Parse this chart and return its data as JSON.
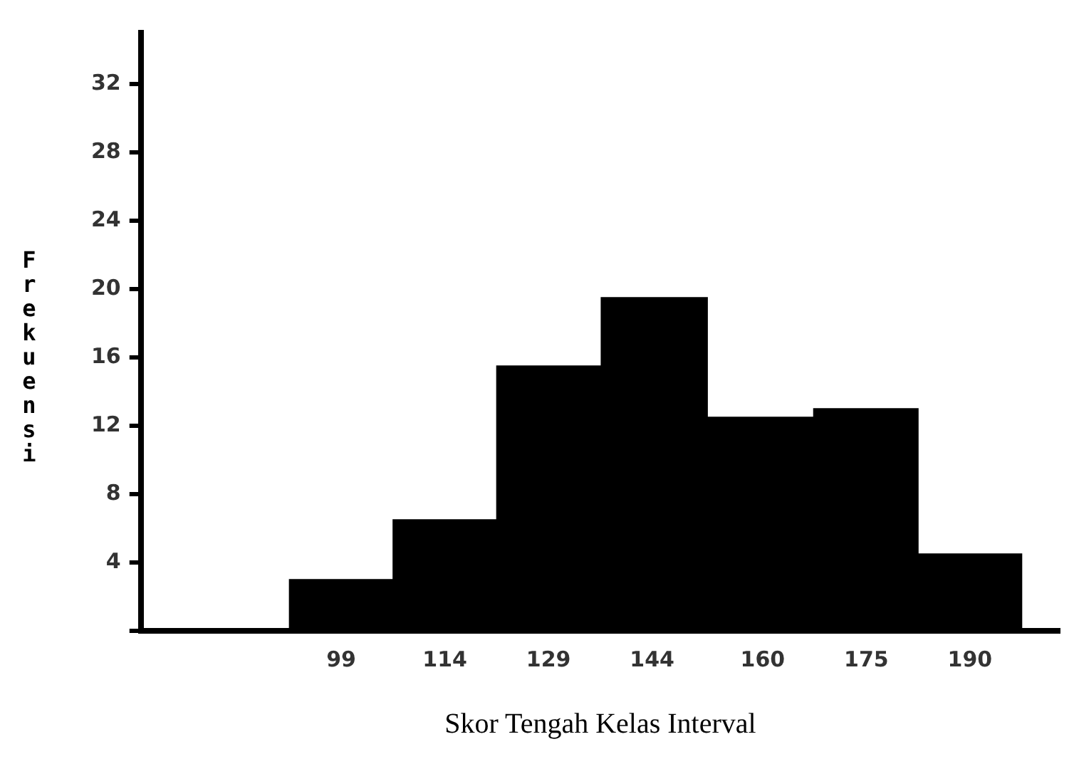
{
  "chart_data": {
    "type": "histogram",
    "xlabel": "Skor Tengah Kelas Interval",
    "ylabel": "Frekuensi",
    "bins": [
      91.5,
      106.5,
      121.5,
      136.5,
      152,
      167.5,
      182.5,
      197.5
    ],
    "values": [
      3,
      6.5,
      15.5,
      19.5,
      12.5,
      13,
      4.5
    ],
    "color": "#000000",
    "xlim": [
      70,
      203
    ],
    "xticks": [
      99,
      114,
      129,
      144,
      160,
      175,
      190
    ],
    "ylim": [
      0,
      35
    ],
    "yticks": [
      {
        "value": 0,
        "label": null
      },
      4,
      8,
      12,
      16,
      20,
      24,
      28,
      32
    ],
    "grid": false,
    "legend": false
  }
}
